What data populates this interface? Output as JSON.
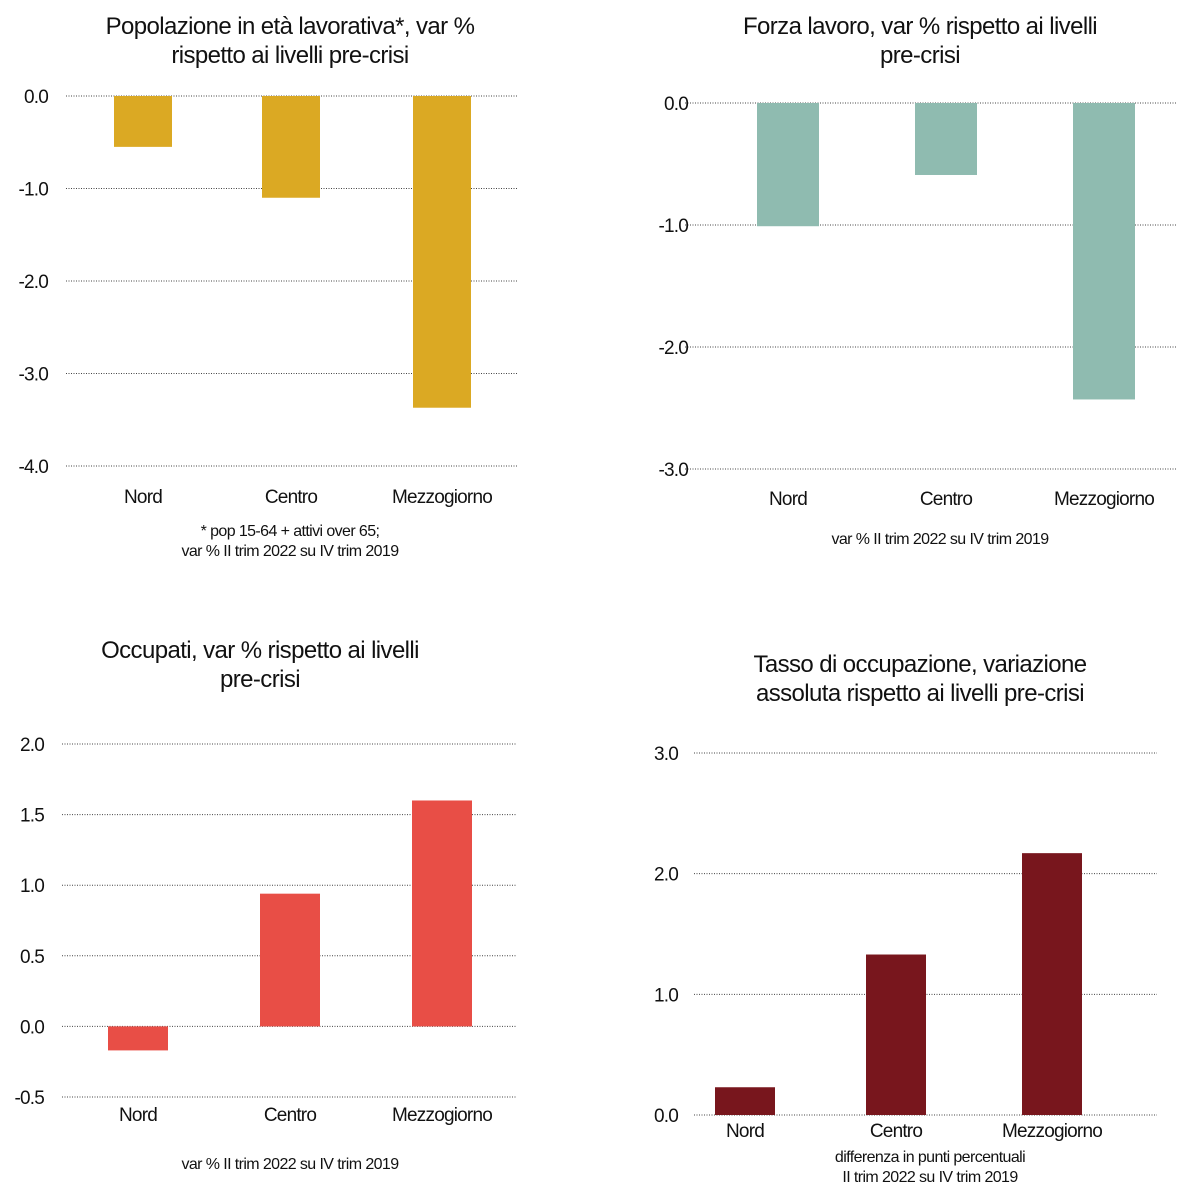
{
  "chart_data": [
    {
      "type": "bar",
      "title_lines": [
        "Popolazione in età lavorativa*, var %",
        "rispetto ai livelli pre-crisi"
      ],
      "categories": [
        "Nord",
        "Centro",
        "Mezzogiorno"
      ],
      "values": [
        -0.55,
        -1.1,
        -3.37
      ],
      "ylim": [
        -4.0,
        0.0
      ],
      "yticks": [
        "0.0",
        "-1.0",
        "-2.0",
        "-3.0",
        "-4.0"
      ],
      "color": "#DBA923",
      "grid": true,
      "note_lines": [
        "* pop 15-64 + attivi over 65;",
        "var % II trim 2022 su IV trim 2019"
      ]
    },
    {
      "type": "bar",
      "title_lines": [
        "Forza lavoro, var % rispetto ai livelli",
        "pre-crisi"
      ],
      "categories": [
        "Nord",
        "Centro",
        "Mezzogiorno"
      ],
      "values": [
        -1.01,
        -0.59,
        -2.43
      ],
      "ylim": [
        -3.0,
        0.0
      ],
      "yticks": [
        "0.0",
        "-1.0",
        "-2.0",
        "-3.0"
      ],
      "color": "#8FBBB0",
      "grid": true,
      "note_lines": [
        "var % II trim 2022 su IV trim 2019"
      ]
    },
    {
      "type": "bar",
      "title_lines": [
        "Occupati, var % rispetto ai livelli",
        "pre-crisi"
      ],
      "categories": [
        "Nord",
        "Centro",
        "Mezzogiorno"
      ],
      "values": [
        -0.17,
        0.94,
        1.6
      ],
      "ylim": [
        -0.5,
        2.0
      ],
      "yticks": [
        "2.0",
        "1.5",
        "1.0",
        "0.5",
        "0.0",
        "-0.5"
      ],
      "color": "#E84E46",
      "grid": true,
      "note_lines": [
        "var % II trim 2022 su IV trim 2019"
      ]
    },
    {
      "type": "bar",
      "title_lines": [
        "Tasso di occupazione, variazione",
        "assoluta rispetto ai livelli pre-crisi"
      ],
      "categories": [
        "Nord",
        "Centro",
        "Mezzogiorno"
      ],
      "values": [
        0.23,
        1.33,
        2.17
      ],
      "ylim": [
        0.0,
        3.0
      ],
      "yticks": [
        "3.0",
        "2.0",
        "1.0",
        "0.0"
      ],
      "color": "#78161D",
      "grid": true,
      "note_lines": [
        "differenza in punti percentuali",
        "II trim 2022 su IV trim 2019"
      ]
    }
  ]
}
